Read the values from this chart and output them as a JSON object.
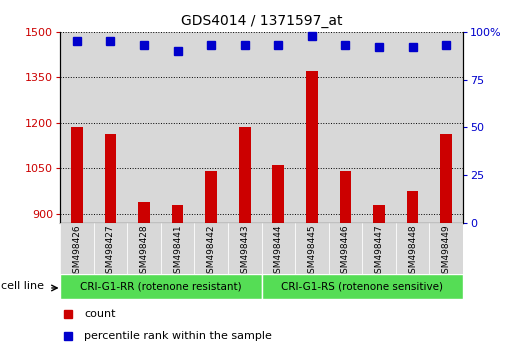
{
  "title": "GDS4014 / 1371597_at",
  "samples": [
    "GSM498426",
    "GSM498427",
    "GSM498428",
    "GSM498441",
    "GSM498442",
    "GSM498443",
    "GSM498444",
    "GSM498445",
    "GSM498446",
    "GSM498447",
    "GSM498448",
    "GSM498449"
  ],
  "counts": [
    1185,
    1165,
    940,
    930,
    1040,
    1185,
    1060,
    1370,
    1040,
    930,
    975,
    1165
  ],
  "percentile_ranks": [
    95,
    95,
    93,
    90,
    93,
    93,
    93,
    98,
    93,
    92,
    92,
    93
  ],
  "ylim_left": [
    870,
    1500
  ],
  "ylim_right": [
    0,
    100
  ],
  "yticks_left": [
    900,
    1050,
    1200,
    1350,
    1500
  ],
  "yticks_right": [
    0,
    25,
    50,
    75,
    100
  ],
  "bar_color": "#cc0000",
  "dot_color": "#0000cc",
  "group1_label": "CRI-G1-RR (rotenone resistant)",
  "group2_label": "CRI-G1-RS (rotenone sensitive)",
  "group1_count": 6,
  "group2_count": 6,
  "group_bg_color": "#55dd55",
  "sample_bg_color": "#d8d8d8",
  "bar_width": 0.35,
  "dot_size": 6,
  "cell_line_label": "cell line",
  "legend_count_label": "count",
  "legend_percentile_label": "percentile rank within the sample",
  "fig_width": 5.23,
  "fig_height": 3.54
}
